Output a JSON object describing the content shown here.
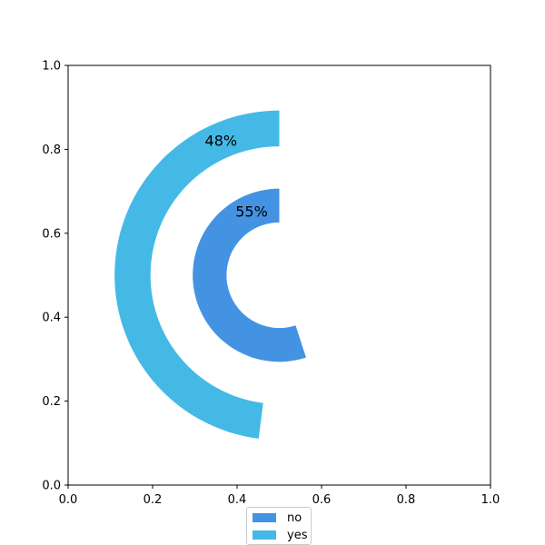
{
  "chart_data": {
    "type": "pie",
    "subtype": "radial-bar",
    "title": "",
    "xlabel": "",
    "ylabel": "",
    "xlim": [
      0,
      1
    ],
    "ylim": [
      0,
      1
    ],
    "xticks": [
      "0.0",
      "0.2",
      "0.4",
      "0.6",
      "0.8",
      "1.0"
    ],
    "yticks": [
      "0.0",
      "0.2",
      "0.4",
      "0.6",
      "0.8",
      "1.0"
    ],
    "series": [
      {
        "name": "no",
        "value": 55,
        "label": "55%",
        "color": "#4493e3"
      },
      {
        "name": "yes",
        "value": 48,
        "label": "48%",
        "color": "#45b9e5"
      }
    ],
    "legend_position": "bottom-center",
    "grid": false
  }
}
